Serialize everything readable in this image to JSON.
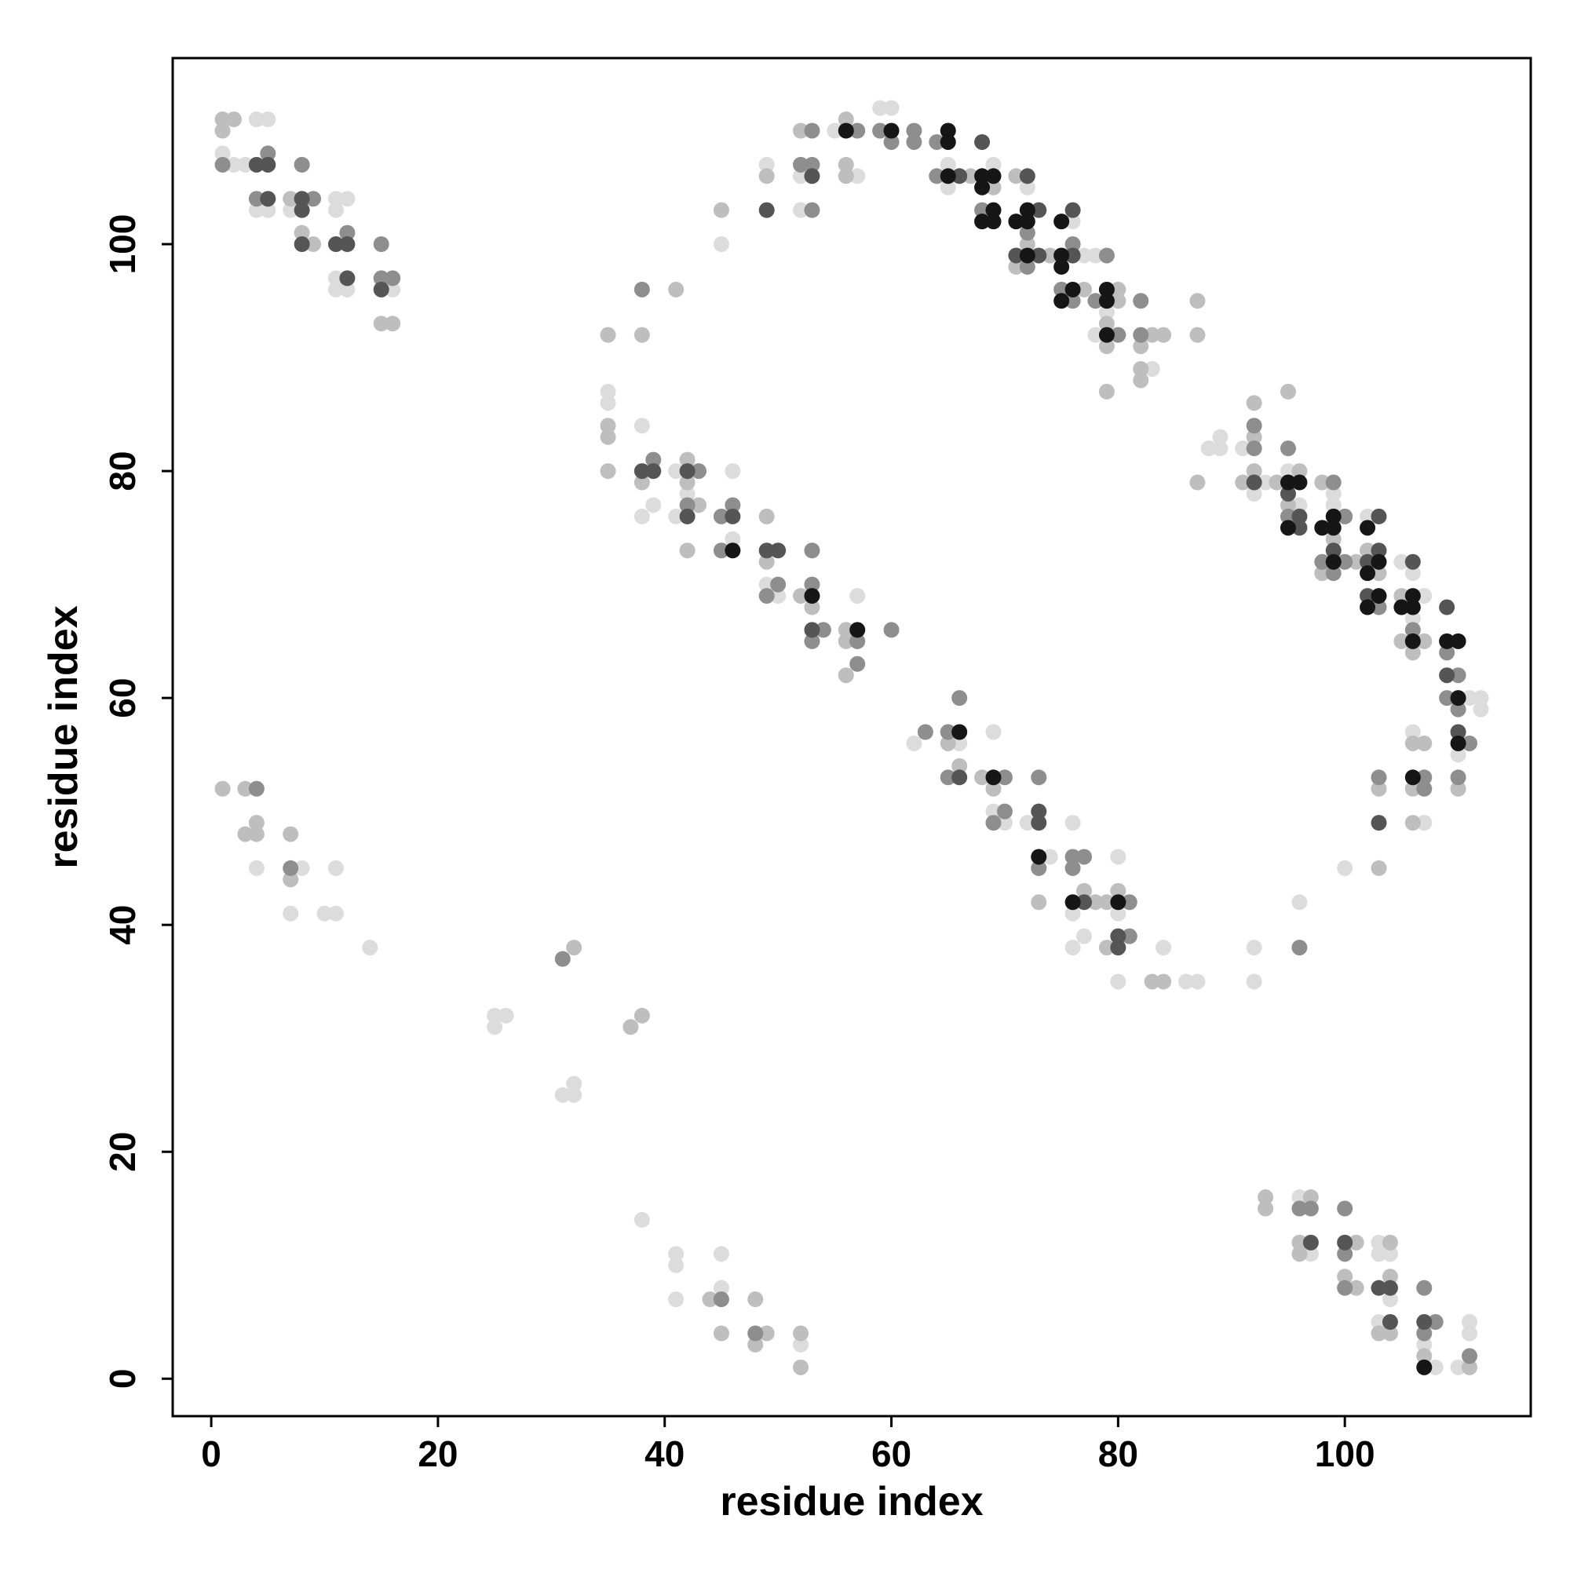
{
  "chart_data": {
    "type": "scatter",
    "xlabel": "residue index",
    "ylabel": "residue index",
    "xlim": [
      -3.4,
      116.4
    ],
    "ylim": [
      -3.3,
      116.4
    ],
    "xticks": [
      0,
      20,
      40,
      60,
      80,
      100
    ],
    "yticks": [
      0,
      20,
      40,
      60,
      80,
      100
    ],
    "grid": false,
    "series": [
      {
        "color": "#dcdcdc",
        "x": [
          1,
          2,
          3,
          4,
          5,
          4,
          5,
          7,
          11,
          12,
          11,
          11,
          11,
          12,
          16,
          4,
          8,
          7,
          10,
          11,
          11,
          14,
          25,
          26,
          25,
          31,
          32,
          32,
          38,
          41,
          41,
          41,
          45,
          45,
          52,
          96,
          97,
          103,
          103,
          104,
          104,
          103,
          107,
          108,
          110,
          111,
          111,
          35,
          35,
          38,
          38,
          39,
          41,
          42,
          41,
          46,
          46,
          49,
          50,
          57,
          62,
          66,
          69,
          69,
          70,
          72,
          74,
          76,
          76,
          76,
          77,
          80,
          80,
          80,
          84,
          86,
          87,
          92,
          92,
          96,
          100,
          45,
          49,
          52,
          52,
          55,
          57,
          59,
          60,
          65,
          65,
          69,
          72,
          76,
          77,
          78,
          79,
          78,
          83,
          88,
          89,
          89,
          91,
          92,
          93,
          95,
          96,
          99,
          99,
          102,
          105,
          106,
          107,
          106,
          111,
          112,
          112,
          106,
          110,
          107
        ],
        "values": [
          108,
          107,
          107,
          111,
          111,
          103,
          103,
          103,
          104,
          104,
          103,
          97,
          96,
          96,
          96,
          45,
          45,
          41,
          41,
          41,
          45,
          38,
          32,
          32,
          31,
          25,
          26,
          25,
          14,
          11,
          10,
          7,
          8,
          11,
          3,
          16,
          11,
          12,
          11,
          11,
          7,
          5,
          3,
          1,
          1,
          4,
          5,
          87,
          86,
          84,
          76,
          77,
          80,
          78,
          76,
          80,
          74,
          70,
          69,
          69,
          56,
          56,
          57,
          50,
          49,
          49,
          46,
          49,
          41,
          38,
          39,
          46,
          41,
          35,
          38,
          35,
          35,
          38,
          35,
          42,
          45,
          100,
          107,
          106,
          103,
          110,
          106,
          112,
          112,
          107,
          105,
          107,
          105,
          102,
          99,
          99,
          94,
          92,
          89,
          82,
          83,
          82,
          82,
          78,
          79,
          80,
          77,
          78,
          77,
          76,
          72,
          71,
          69,
          67,
          60,
          60,
          59,
          57,
          55,
          49
        ]
      },
      {
        "color": "#bebebe",
        "x": [
          1,
          2,
          1,
          7,
          8,
          9,
          15,
          16,
          1,
          3,
          3,
          4,
          4,
          7,
          7,
          32,
          37,
          38,
          44,
          45,
          48,
          49,
          48,
          52,
          52,
          93,
          93,
          97,
          96,
          96,
          101,
          100,
          101,
          104,
          104,
          103,
          104,
          107,
          111,
          35,
          38,
          41,
          35,
          35,
          35,
          38,
          42,
          42,
          43,
          42,
          49,
          49,
          52,
          53,
          56,
          56,
          56,
          65,
          66,
          68,
          69,
          73,
          77,
          78,
          79,
          80,
          79,
          83,
          84,
          103,
          45,
          49,
          52,
          56,
          56,
          56,
          67,
          69,
          71,
          72,
          71,
          74,
          77,
          80,
          80,
          79,
          79,
          83,
          84,
          82,
          82,
          82,
          79,
          87,
          87,
          87,
          92,
          92,
          91,
          92,
          94,
          95,
          96,
          95,
          98,
          99,
          98,
          101,
          102,
          103,
          105,
          105,
          107,
          106,
          106,
          107,
          103,
          106,
          110,
          106
        ],
        "values": [
          111,
          111,
          110,
          104,
          101,
          100,
          93,
          93,
          52,
          52,
          48,
          48,
          49,
          48,
          44,
          38,
          31,
          32,
          7,
          4,
          7,
          4,
          3,
          4,
          1,
          16,
          15,
          16,
          12,
          11,
          12,
          9,
          8,
          12,
          9,
          4,
          4,
          2,
          1,
          92,
          92,
          96,
          84,
          83,
          80,
          79,
          81,
          79,
          77,
          73,
          76,
          72,
          69,
          68,
          65,
          66,
          62,
          56,
          54,
          53,
          52,
          42,
          43,
          42,
          42,
          43,
          38,
          35,
          35,
          45,
          103,
          106,
          110,
          111,
          107,
          106,
          106,
          105,
          106,
          100,
          98,
          99,
          96,
          96,
          95,
          93,
          91,
          92,
          92,
          91,
          89,
          88,
          87,
          95,
          92,
          79,
          86,
          83,
          79,
          80,
          79,
          87,
          80,
          77,
          79,
          74,
          71,
          72,
          73,
          71,
          69,
          65,
          65,
          64,
          56,
          56,
          52,
          52,
          52,
          49
        ]
      },
      {
        "color": "#8e8e8e",
        "x": [
          1,
          5,
          4,
          9,
          8,
          12,
          15,
          15,
          16,
          4,
          7,
          31,
          45,
          48,
          96,
          97,
          100,
          100,
          100,
          107,
          108,
          107,
          111,
          38,
          39,
          43,
          42,
          45,
          46,
          45,
          50,
          49,
          53,
          53,
          54,
          53,
          57,
          57,
          60,
          63,
          65,
          66,
          65,
          70,
          70,
          69,
          73,
          73,
          76,
          77,
          76,
          81,
          81,
          96,
          53,
          52,
          53,
          53,
          57,
          59,
          60,
          62,
          62,
          64,
          64,
          68,
          72,
          72,
          76,
          79,
          75,
          76,
          78,
          80,
          82,
          82,
          92,
          92,
          95,
          95,
          99,
          100,
          98,
          100,
          99,
          103,
          106,
          109,
          110,
          109,
          110,
          111,
          103,
          107,
          107,
          110
        ],
        "values": [
          107,
          108,
          104,
          104,
          107,
          101,
          100,
          97,
          97,
          52,
          45,
          37,
          7,
          4,
          15,
          15,
          15,
          11,
          8,
          8,
          5,
          4,
          2,
          96,
          81,
          80,
          77,
          76,
          77,
          73,
          70,
          69,
          73,
          70,
          66,
          65,
          65,
          63,
          66,
          57,
          57,
          60,
          53,
          53,
          50,
          49,
          53,
          45,
          46,
          46,
          45,
          42,
          39,
          38,
          110,
          107,
          107,
          103,
          110,
          110,
          109,
          110,
          109,
          109,
          106,
          103,
          101,
          98,
          100,
          99,
          96,
          95,
          95,
          92,
          95,
          92,
          84,
          82,
          82,
          76,
          79,
          76,
          72,
          72,
          71,
          68,
          66,
          64,
          62,
          60,
          59,
          56,
          53,
          53,
          52,
          53
        ]
      },
      {
        "color": "#555555",
        "x": [
          4,
          5,
          5,
          8,
          8,
          8,
          11,
          12,
          12,
          15,
          97,
          100,
          103,
          104,
          104,
          107,
          38,
          39,
          42,
          42,
          46,
          49,
          50,
          53,
          66,
          73,
          73,
          77,
          80,
          80,
          49,
          53,
          66,
          68,
          72,
          73,
          73,
          71,
          76,
          76,
          92,
          95,
          96,
          96,
          99,
          103,
          103,
          102,
          102,
          106,
          109,
          109,
          110,
          103
        ],
        "values": [
          107,
          107,
          104,
          104,
          103,
          100,
          100,
          100,
          97,
          96,
          12,
          12,
          8,
          8,
          5,
          5,
          80,
          80,
          80,
          76,
          76,
          73,
          73,
          66,
          53,
          50,
          49,
          42,
          39,
          38,
          103,
          106,
          106,
          109,
          106,
          103,
          99,
          99,
          103,
          99,
          79,
          78,
          76,
          75,
          73,
          76,
          73,
          72,
          69,
          72,
          68,
          62,
          57,
          49
        ]
      },
      {
        "color": "#161616",
        "x": [
          46,
          53,
          57,
          66,
          69,
          73,
          76,
          80,
          56,
          60,
          65,
          65,
          65,
          68,
          69,
          68,
          69,
          68,
          69,
          71,
          72,
          72,
          72,
          75,
          75,
          75,
          76,
          75,
          79,
          79,
          79,
          95,
          96,
          95,
          99,
          98,
          99,
          99,
          102,
          103,
          102,
          103,
          102,
          106,
          105,
          106,
          106,
          109,
          110,
          110,
          110,
          106,
          107
        ],
        "values": [
          73,
          69,
          66,
          57,
          53,
          46,
          42,
          42,
          110,
          110,
          110,
          109,
          106,
          106,
          106,
          105,
          103,
          102,
          102,
          102,
          102,
          103,
          99,
          102,
          99,
          98,
          96,
          95,
          96,
          95,
          92,
          79,
          79,
          75,
          76,
          75,
          75,
          72,
          75,
          72,
          71,
          69,
          68,
          69,
          68,
          68,
          65,
          65,
          65,
          60,
          56,
          53,
          1
        ]
      }
    ]
  }
}
